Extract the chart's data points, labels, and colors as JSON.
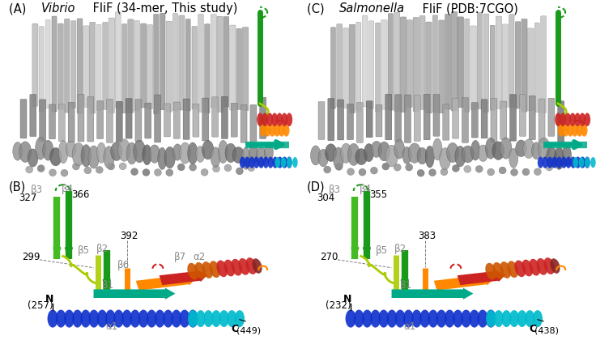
{
  "bg_color": "#ffffff",
  "gray_text_color": "#888888",
  "black_text_color": "#000000",
  "panel_A_label": "(A)",
  "panel_A_italic": "Vibrio",
  "panel_A_rest": " FliF (34-mer, This study)",
  "panel_C_label": "(C)",
  "panel_C_italic": "Salmonella",
  "panel_C_rest": " FliF (PDB:7CGO)",
  "panel_B_label": "(B)",
  "panel_D_label": "(D)",
  "colors": {
    "green_dark": "#1a9a1a",
    "green_mid": "#44bb22",
    "yellow_green": "#aacc00",
    "teal": "#00aa88",
    "cyan": "#00bbcc",
    "blue": "#1133cc",
    "orange": "#ff8800",
    "dark_orange": "#cc5500",
    "red": "#cc2222",
    "dark_red": "#882222",
    "gray_helix": "#aaaaaa",
    "gray_dark": "#666666",
    "gray_light": "#cccccc"
  }
}
